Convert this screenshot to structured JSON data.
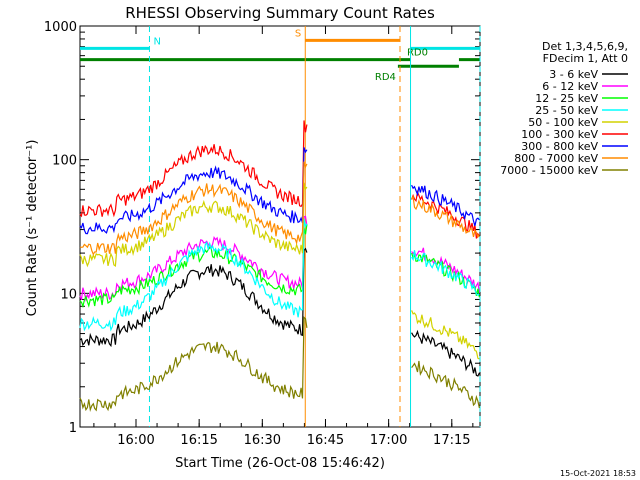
{
  "chart_data": {
    "type": "line",
    "title": "RHESSI Observing Summary Count Rates",
    "xlabel": "Start Time (26-Oct-08 15:46:42)",
    "ylabel": "Count Rate (s⁻¹ detector⁻¹)",
    "yscale": "log",
    "ylim": [
      1,
      1000
    ],
    "xlim_minutes": [
      0,
      95
    ],
    "x_ticks": [
      {
        "t": 13.3,
        "label": "16:00"
      },
      {
        "t": 28.3,
        "label": "16:15"
      },
      {
        "t": 43.3,
        "label": "16:30"
      },
      {
        "t": 58.3,
        "label": "16:45"
      },
      {
        "t": 73.3,
        "label": "17:00"
      },
      {
        "t": 88.3,
        "label": "17:15"
      }
    ],
    "y_ticks": [
      {
        "v": 1,
        "label": "1"
      },
      {
        "v": 10,
        "label": "10"
      },
      {
        "v": 100,
        "label": "100"
      },
      {
        "v": 1000,
        "label": "1000"
      }
    ],
    "legend_header": [
      "Det 1,3,4,5,6,9,",
      "FDecim 1, Att 0"
    ],
    "legend_position": "right",
    "series": [
      {
        "name": "3 - 6 keV",
        "color": "#000000",
        "night_level": 4.5,
        "peak": 15,
        "post": 5
      },
      {
        "name": "6 - 12 keV",
        "color": "#ff00ff",
        "night_level": 10,
        "peak": 24,
        "post": 22
      },
      {
        "name": "12 - 25 keV",
        "color": "#00ff00",
        "night_level": 9,
        "peak": 20,
        "post": 20
      },
      {
        "name": "25 - 50 keV",
        "color": "#00ffff",
        "night_level": 6,
        "peak": 22,
        "post": 20
      },
      {
        "name": "50 - 100 keV",
        "color": "#d2d200",
        "night_level": 18,
        "peak": 45,
        "post": 7
      },
      {
        "name": "100 - 300 keV",
        "color": "#ff0000",
        "night_level": 42,
        "peak": 120,
        "post": 55
      },
      {
        "name": "300 - 800 keV",
        "color": "#0000ff",
        "night_level": 31,
        "peak": 80,
        "post": 65
      },
      {
        "name": "800 - 7000 keV",
        "color": "#ff8c00",
        "night_level": 22,
        "peak": 60,
        "post": 50
      },
      {
        "name": "7000 - 15000 keV",
        "color": "#808000",
        "night_level": 1.5,
        "peak": 4,
        "post": 3
      }
    ],
    "flags": [
      {
        "label": "N",
        "color": "#00e5e5",
        "segments": [
          [
            0,
            16.5
          ],
          [
            78.5,
            95
          ]
        ],
        "value": 680
      },
      {
        "label": "S",
        "color": "#ff8c00",
        "segments": [
          [
            53.5,
            76
          ]
        ],
        "value": 780
      },
      {
        "label": "RD0",
        "color": "#008000",
        "segments": [
          [
            0,
            78.5
          ],
          [
            90,
            95
          ]
        ],
        "value": 560
      },
      {
        "label": "RD4",
        "color": "#008000",
        "segments": [
          [
            75.5,
            90
          ]
        ],
        "value": 500
      }
    ],
    "vlines": [
      {
        "t": 16.5,
        "color": "#00e5e5",
        "dashed": true
      },
      {
        "t": 53.5,
        "color": "#ff8c00",
        "dashed": false
      },
      {
        "t": 76,
        "color": "#ff8c00",
        "dashed": true
      },
      {
        "t": 78.5,
        "color": "#00e5e5",
        "dashed": false
      },
      {
        "t": 95,
        "color": "#00e5e5",
        "dashed": true
      }
    ]
  },
  "footer_timestamp": "15-Oct-2021 18:53"
}
